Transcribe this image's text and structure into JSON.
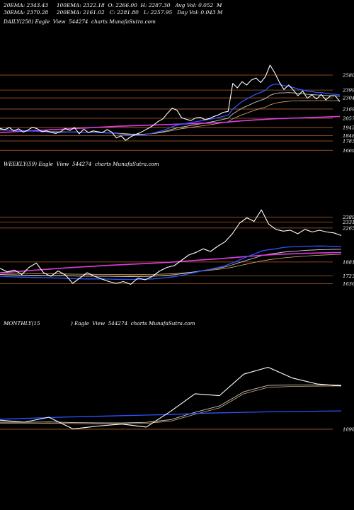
{
  "header": {
    "line1": {
      "ema20": "20EMA: 2343.43",
      "ema100": "100EMA: 2322.18",
      "open": "O: 2266.00",
      "high": "H: 2287.30",
      "avgvol": "Avg Vol: 0.052  M"
    },
    "line2": {
      "ema30": "30EMA: 2370.28",
      "ema200": "200EMA: 2161.02",
      "close": "C: 2281.80",
      "low": "L: 2257.95",
      "dayvol": "Day Vol: 0.043 M"
    }
  },
  "colors": {
    "background": "#000000",
    "grid": "#b4602a",
    "price": "#ffffff",
    "ema_fast": "#2a55ff",
    "ema_slow": "#e03ce0",
    "ema_grey": "#c8c8c8",
    "ema_gold": "#d8b070"
  },
  "chart_data": [
    {
      "type": "line",
      "panel": "daily",
      "label": "DAILY(250) Eagle  View  544274  charts MunafaSutra.com",
      "ticks": [
        "2580",
        "2399",
        "2304",
        "2169",
        "2057",
        "1945",
        "1848",
        "1783",
        "1669"
      ],
      "ylim": [
        1560,
        2760
      ],
      "series": [
        {
          "role": "price",
          "values": [
            1935,
            1920,
            1945,
            1905,
            1930,
            1890,
            1915,
            1950,
            1930,
            1895,
            1905,
            1885,
            1875,
            1895,
            1935,
            1910,
            1945,
            1870,
            1925,
            1885,
            1905,
            1895,
            1885,
            1920,
            1890,
            1820,
            1845,
            1790,
            1830,
            1860,
            1880,
            1910,
            1940,
            1975,
            2020,
            2050,
            2120,
            2180,
            2155,
            2065,
            2045,
            2030,
            2060,
            2070,
            2040,
            2055,
            2080,
            2100,
            2130,
            2140,
            2480,
            2425,
            2500,
            2460,
            2520,
            2545,
            2490,
            2560,
            2700,
            2610,
            2495,
            2405,
            2460,
            2400,
            2330,
            2390,
            2300,
            2340,
            2290,
            2345,
            2280,
            2330,
            2330,
            2260
          ]
        },
        {
          "role": "ema-fast",
          "values": [
            1925,
            1920,
            1915,
            1910,
            1908,
            1905,
            1903,
            1901,
            1899,
            1896,
            1893,
            1890,
            1888,
            1887,
            1888,
            1890,
            1892,
            1890,
            1889,
            1887,
            1886,
            1884,
            1882,
            1880,
            1878,
            1872,
            1866,
            1858,
            1852,
            1850,
            1852,
            1858,
            1868,
            1880,
            1895,
            1910,
            1930,
            1955,
            1975,
            1985,
            1995,
            2005,
            2015,
            2025,
            2035,
            2045,
            2055,
            2068,
            2080,
            2095,
            2170,
            2215,
            2260,
            2290,
            2320,
            2350,
            2370,
            2395,
            2450,
            2470,
            2470,
            2450,
            2445,
            2430,
            2410,
            2400,
            2385,
            2380,
            2370,
            2368,
            2360,
            2352,
            2348,
            2340
          ]
        },
        {
          "role": "ema-grey",
          "values": [
            1920,
            1918,
            1915,
            1912,
            1910,
            1907,
            1905,
            1903,
            1901,
            1899,
            1897,
            1895,
            1893,
            1892,
            1891,
            1891,
            1890,
            1889,
            1888,
            1887,
            1886,
            1884,
            1882,
            1880,
            1878,
            1874,
            1870,
            1865,
            1861,
            1859,
            1859,
            1862,
            1867,
            1874,
            1884,
            1895,
            1908,
            1925,
            1940,
            1950,
            1960,
            1970,
            1980,
            1990,
            2000,
            2010,
            2020,
            2032,
            2045,
            2058,
            2110,
            2145,
            2180,
            2205,
            2230,
            2255,
            2275,
            2295,
            2335,
            2355,
            2365,
            2365,
            2368,
            2365,
            2358,
            2355,
            2348,
            2345,
            2340,
            2338,
            2334,
            2330,
            2328,
            2324
          ]
        },
        {
          "role": "ema-gold",
          "values": [
            1915,
            1914,
            1912,
            1910,
            1908,
            1906,
            1905,
            1903,
            1901,
            1900,
            1898,
            1896,
            1895,
            1894,
            1893,
            1892,
            1892,
            1891,
            1890,
            1889,
            1888,
            1886,
            1885,
            1883,
            1881,
            1878,
            1875,
            1871,
            1868,
            1866,
            1865,
            1866,
            1869,
            1873,
            1880,
            1888,
            1898,
            1910,
            1922,
            1931,
            1939,
            1947,
            1955,
            1963,
            1971,
            1979,
            1987,
            1996,
            2005,
            2015,
            2050,
            2075,
            2100,
            2120,
            2140,
            2160,
            2177,
            2193,
            2220,
            2237,
            2250,
            2257,
            2263,
            2267,
            2268,
            2270,
            2270,
            2271,
            2271,
            2272,
            2271,
            2271,
            2271,
            2270
          ]
        },
        {
          "role": "ema-slow",
          "values": [
            1885,
            1888,
            1891,
            1894,
            1897,
            1900,
            1903,
            1906,
            1909,
            1912,
            1915,
            1918,
            1921,
            1924,
            1927,
            1930,
            1933,
            1936,
            1939,
            1942,
            1945,
            1948,
            1951,
            1954,
            1957,
            1960,
            1962,
            1964,
            1966,
            1968,
            1970,
            1972,
            1974,
            1976,
            1978,
            1980,
            1982,
            1984,
            1986,
            1988,
            1990,
            1992,
            1994,
            1996,
            1998,
            2000,
            2002,
            2005,
            2008,
            2011,
            2018,
            2022,
            2026,
            2030,
            2034,
            2038,
            2041,
            2044,
            2048,
            2051,
            2053,
            2055,
            2057,
            2059,
            2061,
            2063,
            2065,
            2067,
            2069,
            2071,
            2073,
            2075,
            2077,
            2079
          ]
        }
      ]
    },
    {
      "type": "line",
      "panel": "weekly",
      "label": "WEEKLY(59) Eagle  View  544274  charts MunafaSutra.com",
      "ticks": [
        "2389",
        "2331",
        "2265",
        "1881",
        "1723",
        "1636"
      ],
      "ylim": [
        1560,
        2520
      ],
      "series": [
        {
          "role": "price",
          "values": [
            1810,
            1770,
            1790,
            1740,
            1820,
            1870,
            1760,
            1720,
            1780,
            1735,
            1640,
            1700,
            1760,
            1720,
            1690,
            1660,
            1640,
            1660,
            1630,
            1700,
            1680,
            1720,
            1780,
            1820,
            1840,
            1900,
            1960,
            1990,
            2030,
            2000,
            2060,
            2110,
            2200,
            2320,
            2380,
            2340,
            2470,
            2310,
            2250,
            2230,
            2240,
            2200,
            2250,
            2220,
            2240,
            2220,
            2210,
            2180
          ]
        },
        {
          "role": "ema-fast",
          "values": [
            1720,
            1715,
            1712,
            1710,
            1708,
            1706,
            1704,
            1702,
            1700,
            1698,
            1694,
            1691,
            1690,
            1690,
            1689,
            1688,
            1686,
            1685,
            1684,
            1686,
            1687,
            1690,
            1697,
            1705,
            1715,
            1730,
            1748,
            1765,
            1785,
            1800,
            1818,
            1840,
            1870,
            1905,
            1940,
            1970,
            2005,
            2020,
            2030,
            2045,
            2052,
            2055,
            2060,
            2060,
            2062,
            2060,
            2058,
            2055
          ]
        },
        {
          "role": "ema-grey",
          "values": [
            1740,
            1738,
            1736,
            1734,
            1733,
            1732,
            1730,
            1729,
            1728,
            1727,
            1724,
            1722,
            1721,
            1721,
            1720,
            1719,
            1718,
            1717,
            1716,
            1717,
            1718,
            1720,
            1725,
            1731,
            1738,
            1748,
            1760,
            1772,
            1786,
            1797,
            1810,
            1826,
            1848,
            1875,
            1902,
            1925,
            1952,
            1968,
            1980,
            1992,
            2000,
            2006,
            2012,
            2016,
            2020,
            2022,
            2024,
            2025
          ]
        },
        {
          "role": "ema-gold",
          "values": [
            1755,
            1754,
            1753,
            1752,
            1751,
            1750,
            1749,
            1748,
            1747,
            1746,
            1744,
            1743,
            1742,
            1742,
            1741,
            1741,
            1740,
            1739,
            1738,
            1739,
            1739,
            1740,
            1743,
            1746,
            1750,
            1756,
            1763,
            1771,
            1780,
            1788,
            1797,
            1808,
            1822,
            1840,
            1858,
            1875,
            1893,
            1906,
            1917,
            1927,
            1935,
            1942,
            1948,
            1953,
            1958,
            1962,
            1966,
            1969
          ]
        },
        {
          "role": "ema-slow",
          "values": [
            1760,
            1766,
            1772,
            1778,
            1784,
            1790,
            1796,
            1802,
            1808,
            1814,
            1819,
            1824,
            1829,
            1834,
            1839,
            1843,
            1847,
            1851,
            1855,
            1859,
            1863,
            1867,
            1872,
            1877,
            1882,
            1888,
            1894,
            1900,
            1906,
            1911,
            1917,
            1923,
            1930,
            1937,
            1944,
            1950,
            1957,
            1962,
            1966,
            1970,
            1973,
            1976,
            1979,
            1981,
            1983,
            1985,
            1987,
            1988
          ]
        }
      ]
    },
    {
      "type": "line",
      "panel": "monthly",
      "label": "MONTHLY(15                   ) Eagle  View  544274  charts MunafaSutra.com",
      "ticks": [
        "1698"
      ],
      "ylim": [
        1560,
        2500
      ],
      "series": [
        {
          "role": "price",
          "values": [
            1790,
            1770,
            1820,
            1700,
            1730,
            1750,
            1720,
            1880,
            2060,
            2040,
            2260,
            2330,
            2220,
            2160,
            2140
          ]
        },
        {
          "role": "ema-fast",
          "values": [
            1800,
            1808,
            1817,
            1824,
            1830,
            1836,
            1842,
            1848,
            1858,
            1865,
            1870,
            1875,
            1878,
            1882,
            1885
          ]
        },
        {
          "role": "ema-grey",
          "values": [
            1770,
            1768,
            1772,
            1765,
            1763,
            1762,
            1768,
            1795,
            1870,
            1935,
            2080,
            2145,
            2150,
            2150,
            2148
          ]
        },
        {
          "role": "ema-gold",
          "values": [
            1760,
            1758,
            1760,
            1755,
            1753,
            1752,
            1758,
            1780,
            1850,
            1915,
            2060,
            2125,
            2135,
            2138,
            2140
          ]
        }
      ]
    }
  ]
}
